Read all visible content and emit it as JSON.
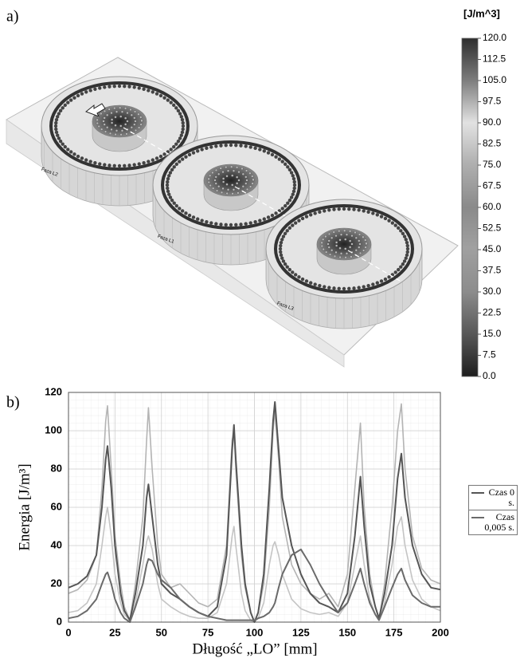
{
  "panel_a": {
    "label": "a)",
    "phase_labels": [
      "Faza L2",
      "Faza L1",
      "Faza L3"
    ],
    "colorbar": {
      "title": "[J/m^3]",
      "lim": [
        0,
        120
      ],
      "ticks": [
        {
          "value": 120,
          "label": "120.0"
        },
        {
          "value": 112.5,
          "label": "112.5"
        },
        {
          "value": 105,
          "label": "105.0"
        },
        {
          "value": 97.5,
          "label": "97.5"
        },
        {
          "value": 90,
          "label": "90.0"
        },
        {
          "value": 82.5,
          "label": "82.5"
        },
        {
          "value": 75,
          "label": "75.0"
        },
        {
          "value": 67.5,
          "label": "67.5"
        },
        {
          "value": 60,
          "label": "60.0"
        },
        {
          "value": 52.5,
          "label": "52.5"
        },
        {
          "value": 45,
          "label": "45.0"
        },
        {
          "value": 37.5,
          "label": "37.5"
        },
        {
          "value": 30,
          "label": "30.0"
        },
        {
          "value": 22.5,
          "label": "22.5"
        },
        {
          "value": 15,
          "label": "15.0"
        },
        {
          "value": 7.5,
          "label": "7.5"
        },
        {
          "value": 0,
          "label": "0.0"
        }
      ]
    }
  },
  "chart_data": {
    "type": "line",
    "panel_label": "b)",
    "x_label": "Długość „LO” [mm]",
    "y_label": "Energia [J/m³]",
    "xlim": [
      0,
      200
    ],
    "ylim": [
      0,
      120
    ],
    "xticks": [
      0,
      25,
      50,
      75,
      100,
      125,
      150,
      175,
      200
    ],
    "yticks": [
      0,
      20,
      40,
      60,
      80,
      100,
      120
    ],
    "grid": true,
    "legend": "right",
    "x": [
      0,
      5,
      10,
      15,
      18,
      20,
      21,
      23,
      25,
      28,
      30,
      33,
      36,
      40,
      42,
      43,
      45,
      48,
      50,
      55,
      60,
      65,
      70,
      75,
      80,
      85,
      88,
      89,
      90,
      93,
      95,
      98,
      100,
      102,
      105,
      108,
      110,
      111,
      113,
      115,
      120,
      125,
      130,
      135,
      140,
      145,
      150,
      154,
      157,
      159,
      162,
      165,
      167,
      170,
      174,
      177,
      179,
      181,
      185,
      190,
      195,
      200
    ],
    "series": [
      {
        "color": "#c4c4c4",
        "values": [
          5,
          6,
          10,
          20,
          40,
          55,
          60,
          45,
          25,
          10,
          4,
          1,
          10,
          30,
          42,
          45,
          38,
          20,
          12,
          8,
          5,
          3,
          2,
          2,
          5,
          20,
          45,
          50,
          40,
          15,
          6,
          1,
          0,
          2,
          10,
          30,
          40,
          42,
          35,
          25,
          12,
          7,
          5,
          4,
          5,
          3,
          10,
          30,
          45,
          30,
          12,
          4,
          1,
          10,
          30,
          50,
          55,
          40,
          22,
          12,
          8,
          6
        ]
      },
      {
        "color": "#b4b4b4",
        "values": [
          15,
          17,
          22,
          35,
          70,
          105,
          113,
          80,
          45,
          20,
          8,
          1,
          20,
          55,
          95,
          112,
          80,
          40,
          25,
          18,
          20,
          15,
          10,
          8,
          12,
          40,
          95,
          100,
          80,
          35,
          18,
          5,
          0,
          5,
          20,
          60,
          100,
          110,
          85,
          55,
          30,
          20,
          15,
          12,
          15,
          8,
          25,
          70,
          104,
          60,
          25,
          8,
          1,
          20,
          60,
          100,
          114,
          80,
          45,
          28,
          22,
          20
        ]
      },
      {
        "name": "Czas 0 s.",
        "color": "#555555",
        "values": [
          18,
          20,
          24,
          35,
          60,
          85,
          92,
          70,
          40,
          15,
          6,
          1,
          15,
          40,
          65,
          72,
          55,
          30,
          20,
          15,
          12,
          8,
          5,
          3,
          8,
          35,
          90,
          103,
          85,
          40,
          20,
          5,
          0,
          5,
          25,
          70,
          105,
          115,
          90,
          65,
          40,
          25,
          15,
          10,
          8,
          5,
          15,
          45,
          76,
          50,
          20,
          8,
          2,
          15,
          40,
          75,
          88,
          65,
          40,
          25,
          18,
          17
        ]
      },
      {
        "name": "Czas 0,005 s.",
        "color": "#6a6a6a",
        "values": [
          2,
          3,
          6,
          12,
          20,
          25,
          26,
          20,
          12,
          5,
          2,
          0,
          8,
          20,
          30,
          33,
          32,
          25,
          22,
          18,
          12,
          8,
          5,
          3,
          2,
          1,
          1,
          1,
          1,
          1,
          1,
          1,
          1,
          2,
          3,
          5,
          8,
          10,
          18,
          25,
          35,
          38,
          30,
          20,
          12,
          5,
          10,
          20,
          28,
          20,
          10,
          4,
          1,
          8,
          18,
          25,
          28,
          22,
          14,
          10,
          8,
          8
        ]
      }
    ]
  }
}
